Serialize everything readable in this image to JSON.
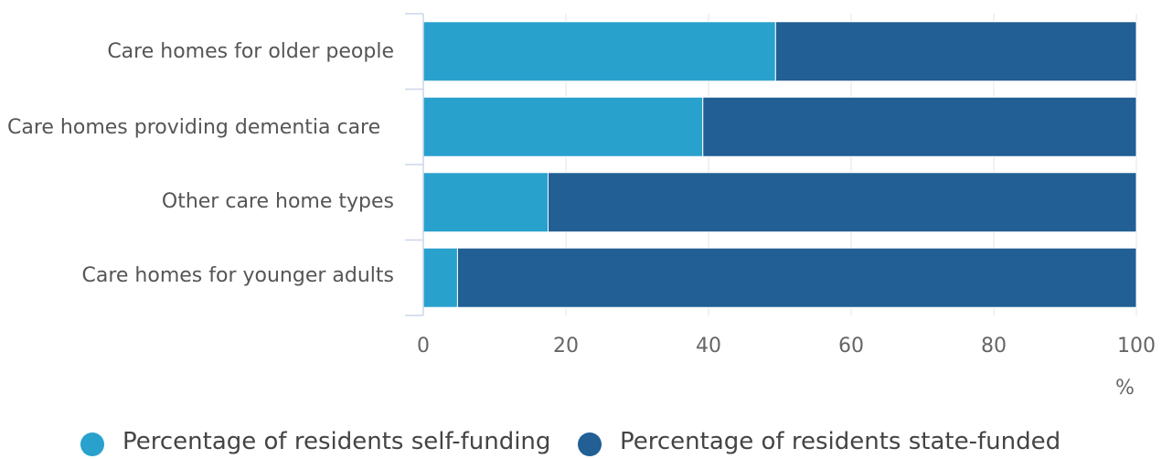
{
  "chart_data": {
    "type": "bar",
    "orientation": "horizontal",
    "stacked": true,
    "categories": [
      "Care homes for older people",
      "Care homes providing dementia care",
      "Other care home types",
      "Care homes for younger adults"
    ],
    "series": [
      {
        "name": "Percentage of residents self-funding",
        "values": [
          49.4,
          39.2,
          17.5,
          4.8
        ],
        "color": "#29a1cd"
      },
      {
        "name": "Percentage of residents state-funded",
        "values": [
          50.6,
          60.8,
          82.5,
          95.2
        ],
        "color": "#215f94"
      }
    ],
    "xlim": [
      0,
      100
    ],
    "xticks": [
      "0",
      "20",
      "40",
      "60",
      "80",
      "100"
    ],
    "xunit": "%",
    "grid": true,
    "legend": "bottom"
  }
}
